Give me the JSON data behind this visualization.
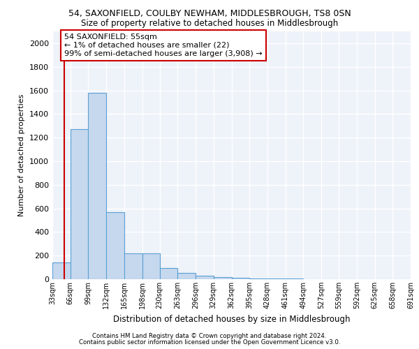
{
  "title1": "54, SAXONFIELD, COULBY NEWHAM, MIDDLESBROUGH, TS8 0SN",
  "title2": "Size of property relative to detached houses in Middlesbrough",
  "xlabel": "Distribution of detached houses by size in Middlesbrough",
  "ylabel": "Number of detached properties",
  "bar_color": "#c5d8ee",
  "bar_edge_color": "#5a9fd4",
  "annotation_text": "54 SAXONFIELD: 55sqm\n← 1% of detached houses are smaller (22)\n99% of semi-detached houses are larger (3,908) →",
  "annotation_box_color": "#ffffff",
  "annotation_box_edge": "#cc0000",
  "vline_x": 55,
  "vline_color": "#cc0000",
  "footer1": "Contains HM Land Registry data © Crown copyright and database right 2024.",
  "footer2": "Contains public sector information licensed under the Open Government Licence v3.0.",
  "bin_edges": [
    33,
    66,
    99,
    132,
    165,
    198,
    230,
    263,
    296,
    329,
    362,
    395,
    428,
    461,
    494,
    527,
    559,
    592,
    625,
    658,
    691
  ],
  "bar_heights": [
    140,
    1270,
    1580,
    570,
    220,
    220,
    95,
    55,
    30,
    20,
    12,
    8,
    5,
    3,
    2,
    2,
    1,
    1,
    1,
    1
  ],
  "ylim": [
    0,
    2100
  ],
  "yticks": [
    0,
    200,
    400,
    600,
    800,
    1000,
    1200,
    1400,
    1600,
    1800,
    2000
  ],
  "background_color": "#eef2f9",
  "grid_color": "#ffffff"
}
